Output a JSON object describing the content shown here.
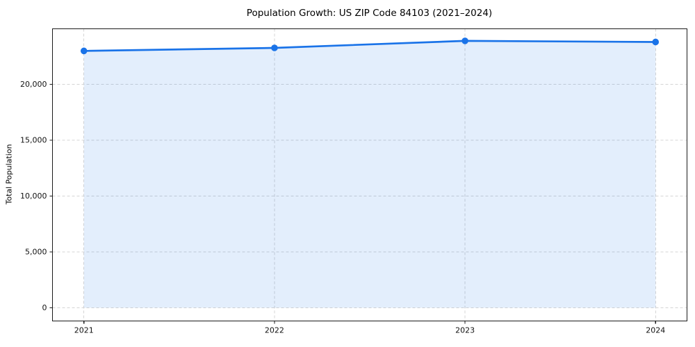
{
  "page": {
    "background_color": "#ffffff"
  },
  "chart": {
    "title": "Population Growth: US ZIP Code 84103 (2021–2024)",
    "ylabel": "Total Population"
  },
  "chart_data": {
    "type": "area",
    "title": "Population Growth: US ZIP Code 84103 (2021–2024)",
    "xlabel": "",
    "ylabel": "Total Population",
    "x": [
      2021,
      2022,
      2023,
      2024
    ],
    "categories": [
      "2021",
      "2022",
      "2023",
      "2024"
    ],
    "series": [
      {
        "name": "Total Population",
        "values": [
          23000,
          23270,
          23900,
          23800
        ]
      }
    ],
    "values": [
      23000,
      23270,
      23900,
      23800
    ],
    "baseline": 0,
    "xlim": [
      2020.835,
      2024.165
    ],
    "ylim": [
      -1190,
      24980
    ],
    "xticks": [
      2021,
      2022,
      2023,
      2024
    ],
    "xtick_labels": [
      "2021",
      "2022",
      "2023",
      "2024"
    ],
    "yticks": [
      0,
      5000,
      10000,
      15000,
      20000
    ],
    "ytick_labels": [
      "0",
      "5,000",
      "10,000",
      "15,000",
      "20,000"
    ],
    "grid": true,
    "grid_style": "dashed",
    "legend": false,
    "line_color": "#1a73e8",
    "marker": "circle",
    "fill_color": "#1a73e8",
    "fill_opacity": 0.12,
    "grid_color": "#d4d4d4",
    "spine_color": "#1a1a1a",
    "tick_label_color": "#111111"
  }
}
